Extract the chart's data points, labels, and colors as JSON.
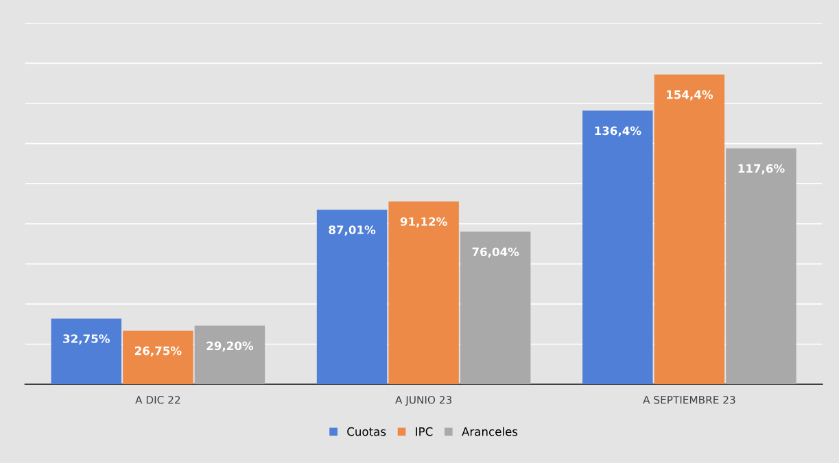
{
  "chart_data": {
    "type": "bar",
    "categories": [
      "A DIC 22",
      "A JUNIO 23",
      "A SEPTIEMBRE 23"
    ],
    "series": [
      {
        "name": "Cuotas",
        "color": "#4f7fd6",
        "values": [
          32.75,
          87.01,
          136.4
        ],
        "value_labels": [
          "32,75%",
          "87,01%",
          "136,4%"
        ]
      },
      {
        "name": "IPC",
        "color": "#ee8a47",
        "values": [
          26.75,
          91.12,
          154.4
        ],
        "value_labels": [
          "26,75%",
          "91,12%",
          "154,4%"
        ]
      },
      {
        "name": "Aranceles",
        "color": "#a9a9a9",
        "values": [
          29.2,
          76.04,
          117.6
        ],
        "value_labels": [
          "29,20%",
          "76,04%",
          "117,6%"
        ]
      }
    ],
    "ylim": [
      0,
      180
    ],
    "yticks": [
      {
        "value": 20,
        "label": null
      },
      {
        "value": 40,
        "label": null
      },
      {
        "value": 60,
        "label": null
      },
      {
        "value": 80,
        "label": null
      },
      {
        "value": 100,
        "label": null
      },
      {
        "value": 120,
        "label": null
      },
      {
        "value": 140,
        "label": null
      },
      {
        "value": 160,
        "label": null
      },
      {
        "value": 180,
        "label": null
      }
    ],
    "tick_labels": "x",
    "grid": "y",
    "legend": "bottom"
  }
}
